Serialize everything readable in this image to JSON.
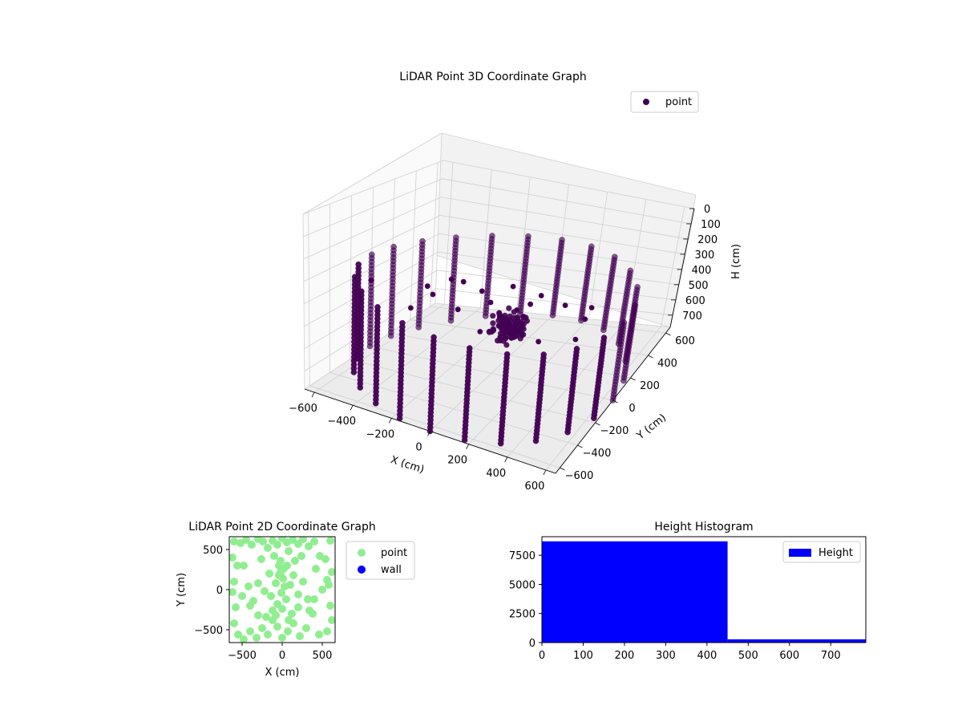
{
  "chart_data": [
    {
      "type": "scatter",
      "projection": "3d",
      "title": "LiDAR Point 3D Coordinate Graph",
      "xlabel": "X (cm)",
      "ylabel": "Y (cm)",
      "zlabel": "H (cm)",
      "x_ticks": [
        "−600",
        "−400",
        "−200",
        "0",
        "200",
        "400",
        "600"
      ],
      "y_ticks": [
        "−600",
        "−400",
        "−200",
        "0",
        "200",
        "400",
        "600"
      ],
      "z_ticks": [
        "0",
        "100",
        "200",
        "300",
        "400",
        "500",
        "600",
        "700"
      ],
      "xlim": [
        -650,
        650
      ],
      "ylim": [
        -650,
        650
      ],
      "zlim": [
        0,
        780
      ],
      "z_inverted": true,
      "grid": true,
      "legend": {
        "position": "top-right",
        "entries": [
          {
            "label": "point",
            "color": "#440154"
          }
        ]
      },
      "series": [
        {
          "name": "point",
          "color": "#440154",
          "description_of_distribution": "circular wall point columns at radius ~650 cm, height 0-450 cm; dense cluster near center; scattered floor points",
          "wall_columns_angles_deg": [
            0,
            15,
            30,
            45,
            60,
            75,
            90,
            105,
            120,
            135,
            150,
            165,
            180,
            195,
            210,
            225,
            240,
            255,
            270,
            285,
            300,
            315,
            330,
            345
          ],
          "wall_height_range": [
            0,
            450
          ],
          "wall_radius": 650,
          "cluster": {
            "x": 0,
            "y": 150,
            "h": 180,
            "count": 120
          },
          "floor_points": [
            [
              -420,
              120,
              520
            ],
            [
              -300,
              -60,
              600
            ],
            [
              -200,
              250,
              480
            ],
            [
              -100,
              -200,
              650
            ],
            [
              50,
              380,
              430
            ],
            [
              150,
              -100,
              700
            ],
            [
              260,
              200,
              560
            ],
            [
              360,
              -300,
              680
            ],
            [
              -520,
              -250,
              710
            ],
            [
              420,
              80,
              600
            ],
            [
              -150,
              480,
              380
            ],
            [
              120,
              -420,
              720
            ],
            [
              -350,
              350,
              450
            ],
            [
              300,
              430,
              350
            ],
            [
              -60,
              60,
              560
            ],
            [
              200,
              -250,
              650
            ],
            [
              -250,
              -380,
              690
            ],
            [
              480,
              -150,
              640
            ],
            [
              80,
              200,
              500
            ],
            [
              -450,
              420,
              400
            ]
          ]
        }
      ]
    },
    {
      "type": "scatter",
      "title": "LiDAR Point 2D Coordinate Graph",
      "xlabel": "X (cm)",
      "ylabel": "Y (cm)",
      "x_ticks": [
        "−500",
        "0",
        "500"
      ],
      "y_ticks": [
        "−500",
        "0",
        "500"
      ],
      "xlim": [
        -660,
        660
      ],
      "ylim": [
        -660,
        660
      ],
      "legend": {
        "position": "right-outside",
        "entries": [
          {
            "label": "point",
            "color": "#90ee90"
          },
          {
            "label": "wall",
            "color": "#0000ff"
          }
        ]
      },
      "series": [
        {
          "name": "point",
          "color": "#90ee90",
          "points": [
            [
              -600,
              600
            ],
            [
              -520,
              580
            ],
            [
              -450,
              620
            ],
            [
              -380,
              560
            ],
            [
              -300,
              630
            ],
            [
              -240,
              600
            ],
            [
              -180,
              520
            ],
            [
              -120,
              610
            ],
            [
              -60,
              560
            ],
            [
              0,
              640
            ],
            [
              60,
              590
            ],
            [
              130,
              620
            ],
            [
              200,
              570
            ],
            [
              260,
              630
            ],
            [
              330,
              540
            ],
            [
              400,
              600
            ],
            [
              470,
              420
            ],
            [
              540,
              380
            ],
            [
              600,
              610
            ],
            [
              -620,
              400
            ],
            [
              -560,
              300
            ],
            [
              -600,
              100
            ],
            [
              -620,
              -30
            ],
            [
              -580,
              -220
            ],
            [
              -600,
              -420
            ],
            [
              -550,
              -560
            ],
            [
              -480,
              -620
            ],
            [
              -400,
              -520
            ],
            [
              -320,
              -600
            ],
            [
              -250,
              -480
            ],
            [
              -180,
              -560
            ],
            [
              -120,
              -380
            ],
            [
              -60,
              -460
            ],
            [
              0,
              -600
            ],
            [
              70,
              -520
            ],
            [
              140,
              -420
            ],
            [
              220,
              -580
            ],
            [
              300,
              -480
            ],
            [
              380,
              -300
            ],
            [
              460,
              -560
            ],
            [
              560,
              -520
            ],
            [
              620,
              -380
            ],
            [
              600,
              -200
            ],
            [
              580,
              60
            ],
            [
              620,
              220
            ],
            [
              560,
              120
            ],
            [
              -40,
              300
            ],
            [
              -20,
              220
            ],
            [
              10,
              140
            ],
            [
              -80,
              80
            ],
            [
              30,
              40
            ],
            [
              -10,
              -40
            ],
            [
              50,
              -120
            ],
            [
              -60,
              -180
            ],
            [
              -140,
              -80
            ],
            [
              100,
              60
            ],
            [
              140,
              180
            ],
            [
              -160,
              200
            ],
            [
              200,
              -60
            ],
            [
              -220,
              -20
            ],
            [
              -300,
              80
            ],
            [
              260,
              100
            ],
            [
              -360,
              -140
            ],
            [
              320,
              -120
            ],
            [
              -420,
              40
            ],
            [
              420,
              260
            ],
            [
              -480,
              300
            ],
            [
              160,
              360
            ],
            [
              -100,
              420
            ],
            [
              80,
              480
            ],
            [
              -260,
              380
            ],
            [
              240,
              420
            ],
            [
              -20,
              360
            ],
            [
              20,
              260
            ],
            [
              -40,
              180
            ],
            [
              60,
              300
            ],
            [
              -120,
              -260
            ],
            [
              120,
              -300
            ],
            [
              -200,
              -340
            ],
            [
              200,
              -220
            ],
            [
              -300,
              -320
            ],
            [
              340,
              -260
            ],
            [
              0,
              -240
            ],
            [
              -80,
              -320
            ],
            [
              80,
              -380
            ],
            [
              -400,
              -200
            ],
            [
              400,
              -120
            ],
            [
              -500,
              -80
            ],
            [
              500,
              0
            ]
          ]
        },
        {
          "name": "wall",
          "color": "#0000ff",
          "points": []
        }
      ]
    },
    {
      "type": "bar",
      "subtype": "histogram",
      "title": "Height Histogram",
      "xlabel": "",
      "ylabel": "",
      "x_ticks": [
        "0",
        "100",
        "200",
        "300",
        "400",
        "500",
        "600",
        "700"
      ],
      "y_ticks": [
        "0",
        "2500",
        "5000",
        "7500"
      ],
      "xlim": [
        0,
        785
      ],
      "ylim": [
        0,
        9100
      ],
      "legend": {
        "position": "top-right",
        "entries": [
          {
            "label": "Height",
            "color": "#0000ff"
          }
        ]
      },
      "series": [
        {
          "name": "Height",
          "color": "#0000ff",
          "bins": [
            {
              "start": 0,
              "end": 450,
              "count": 8700
            },
            {
              "start": 450,
              "end": 785,
              "count": 280
            }
          ]
        }
      ]
    }
  ]
}
